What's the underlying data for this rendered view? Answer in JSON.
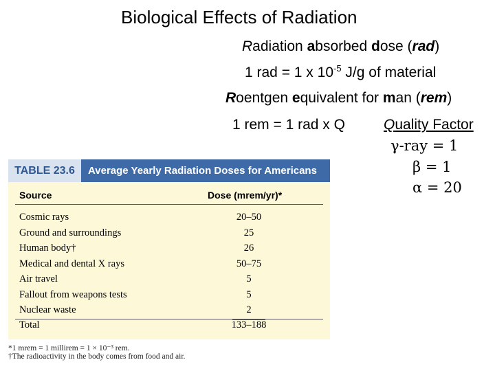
{
  "title": "Biological Effects of Radiation",
  "rad_def": {
    "r": "R",
    "t1": "adiation ",
    "a": "a",
    "t2": "bsorbed ",
    "d": "d",
    "t3": "ose (",
    "rad": "rad",
    "t4": ")"
  },
  "rad_eq": {
    "pre": "1 rad = 1 x 10",
    "exp": "-5",
    "post": " J/g of material"
  },
  "rem_def": {
    "r": "R",
    "t1": "oentgen ",
    "e": "e",
    "t2": "quivalent for ",
    "m": "m",
    "t3": "an (",
    "rem": "rem",
    "t4": ")"
  },
  "rem_eq": "1 rem = 1 rad x Q",
  "quality": {
    "heading_q": "Q",
    "heading_rest": "uality Factor",
    "gamma_sym": "γ",
    "gamma_text": "-ray = 1",
    "beta_sym": "β",
    "beta_text": " = 1",
    "alpha_sym": "α",
    "alpha_text": " = 20"
  },
  "table": {
    "number": "TABLE 23.6",
    "title": "Average Yearly Radiation Doses for Americans",
    "col_source": "Source",
    "col_dose": "Dose (mrem/yr)*",
    "rows": [
      {
        "source": "Cosmic rays",
        "dose": "20–50"
      },
      {
        "source": "Ground and surroundings",
        "dose": "25"
      },
      {
        "source": "Human body†",
        "dose": "26"
      },
      {
        "source": "Medical and dental X rays",
        "dose": "50–75"
      },
      {
        "source": "Air travel",
        "dose": "5"
      },
      {
        "source": "Fallout from weapons tests",
        "dose": "5"
      },
      {
        "source": "Nuclear waste",
        "dose": "2"
      }
    ],
    "total_label": "Total",
    "total_value": "133–188"
  },
  "footnotes": [
    "*1 mrem = 1 millirem = 1 × 10⁻³ rem.",
    "†The radioactivity in the body comes from food and air."
  ]
}
